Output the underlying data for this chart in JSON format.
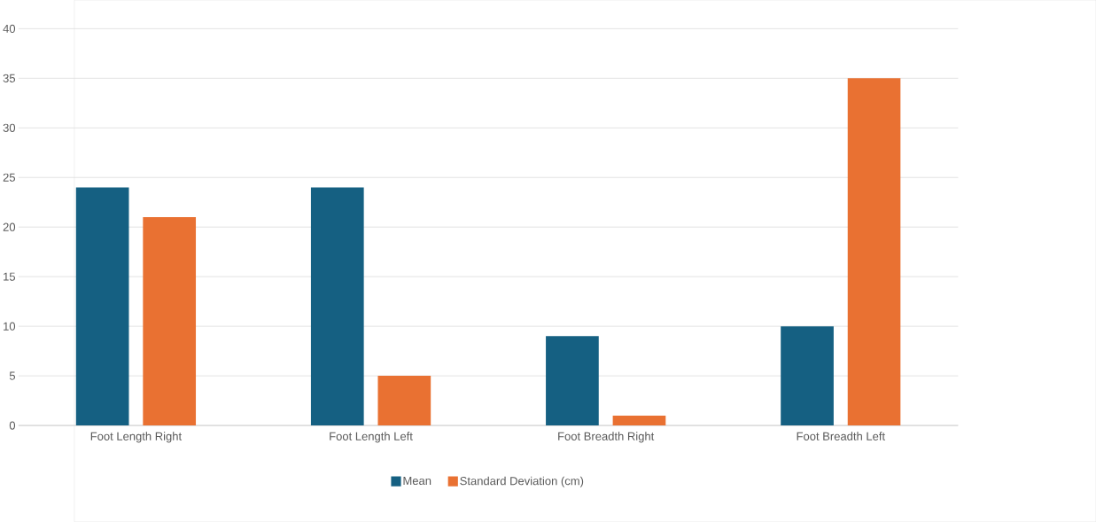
{
  "chart_data": {
    "type": "bar",
    "categories": [
      "Foot Length Right",
      "Foot Length Left",
      "Foot Breadth Right",
      "Foot Breadth Left"
    ],
    "series": [
      {
        "name": "Mean",
        "color": "#156082",
        "values": [
          24,
          24,
          9,
          10
        ]
      },
      {
        "name": "Standard Deviation (cm)",
        "color": "#e97132",
        "values": [
          21,
          5,
          1,
          35
        ]
      }
    ],
    "ylim": [
      0,
      40
    ],
    "yticks": [
      0,
      5,
      10,
      15,
      20,
      25,
      30,
      35,
      40
    ],
    "grid": "y",
    "legend": "bottom"
  }
}
